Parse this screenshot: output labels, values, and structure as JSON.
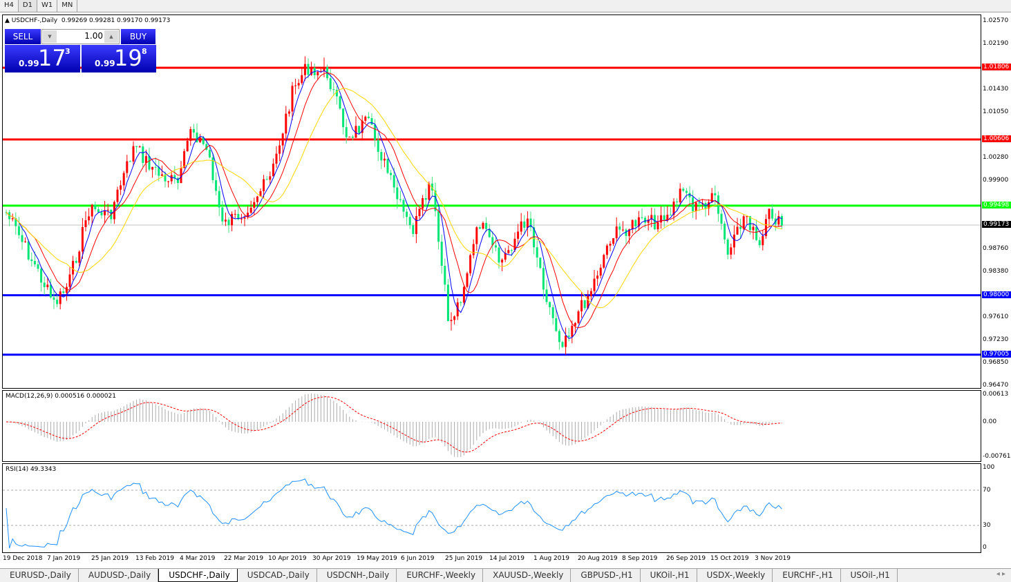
{
  "timeframes": [
    "H4",
    "D1",
    "W1",
    "MN"
  ],
  "active_timeframe": "D1",
  "chart": {
    "symbol_title": "USDCHF-,Daily",
    "ohlc": "0.99269 0.99281 0.99170 0.99173",
    "price_ticks": [
      "1.02570",
      "1.02190",
      "1.01430",
      "1.01050",
      "1.00280",
      "0.99900",
      "0.98760",
      "0.98380",
      "0.97610",
      "0.97230",
      "0.96850",
      "0.96470"
    ],
    "levels": [
      {
        "value": "1.01806",
        "color": "#ff0000"
      },
      {
        "value": "1.00606",
        "color": "#ff0000"
      },
      {
        "value": "0.99498",
        "color": "#00ff00"
      },
      {
        "value": "0.98000",
        "color": "#0000ff"
      },
      {
        "value": "0.97005",
        "color": "#0000ff"
      }
    ],
    "current_price": "0.99173",
    "dates": [
      "19 Dec 2018",
      "7 Jan 2019",
      "25 Jan 2019",
      "13 Feb 2019",
      "4 Mar 2019",
      "22 Mar 2019",
      "10 Apr 2019",
      "30 Apr 2019",
      "19 May 2019",
      "6 Jun 2019",
      "25 Jun 2019",
      "14 Jul 2019",
      "1 Aug 2019",
      "20 Aug 2019",
      "8 Sep 2019",
      "26 Sep 2019",
      "15 Oct 2019",
      "3 Nov 2019"
    ]
  },
  "trade_panel": {
    "sell_label": "SELL",
    "buy_label": "BUY",
    "lot": "1.00",
    "sell_prefix": "0.99",
    "sell_big": "17",
    "sell_sup": "3",
    "buy_prefix": "0.99",
    "buy_big": "19",
    "buy_sup": "8"
  },
  "macd": {
    "label": "MACD(12,26,9) 0.000516 0.000021",
    "ticks": [
      "0.00613",
      "0.00",
      "-0.007612"
    ]
  },
  "rsi": {
    "label": "RSI(14) 49.3343",
    "ticks": [
      "100",
      "70",
      "30",
      "0"
    ]
  },
  "tabs": [
    "EURUSD-,Daily",
    "AUDUSD-,Daily",
    "USDCHF-,Daily",
    "USDCAD-,Daily",
    "USDCNH-,Daily",
    "EURCHF-,Weekly",
    "XAUUSD-,Weekly",
    "GBPUSD-,H1",
    "UKOil-,H1",
    "USDX-,Weekly",
    "EURCHF-,H1",
    "USOil-,H1"
  ],
  "active_tab": "USDCHF-,Daily"
}
